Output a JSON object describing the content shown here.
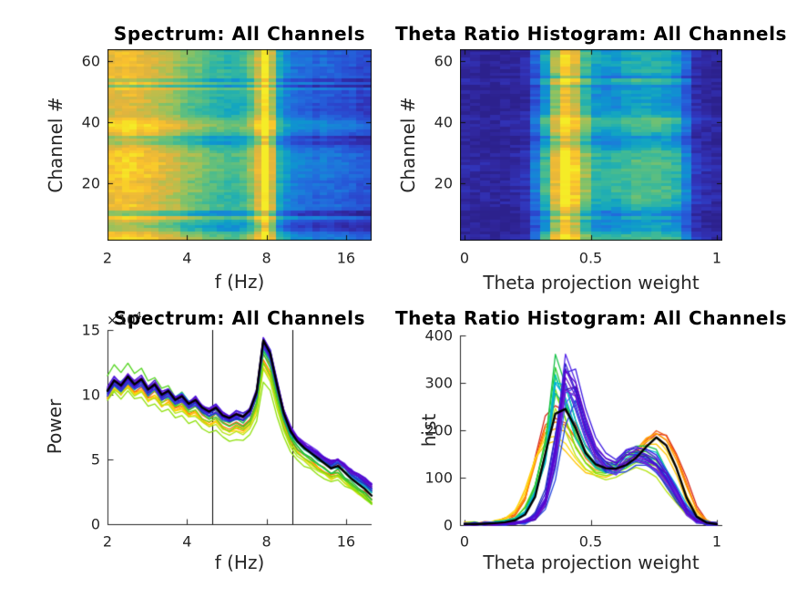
{
  "figure": {
    "background": "#ffffff",
    "axis_color": "#262626",
    "title_color": "#000000"
  },
  "chart_data": [
    {
      "type": "heatmap",
      "title": "Spectrum: All Channels",
      "xlabel": "f (Hz)",
      "ylabel": "Channel #",
      "x_scale": "log",
      "xlim": [
        2,
        20
      ],
      "n_channels": 64,
      "x_tick_labels": [
        "2",
        "4",
        "8",
        "16"
      ],
      "x_tick_values": [
        2,
        4,
        8,
        16
      ],
      "y_tick_labels": [
        "20",
        "40",
        "60"
      ],
      "y_tick_values": [
        20,
        40,
        60
      ],
      "colormap": "parula",
      "colormap_stops": [
        [
          0,
          "#2a1f85"
        ],
        [
          0.06,
          "#30269c"
        ],
        [
          0.12,
          "#3133b8"
        ],
        [
          0.18,
          "#2c44cb"
        ],
        [
          0.24,
          "#2658d7"
        ],
        [
          0.3,
          "#226cdc"
        ],
        [
          0.36,
          "#1a80d9"
        ],
        [
          0.42,
          "#0f93d0"
        ],
        [
          0.48,
          "#12a5c2"
        ],
        [
          0.54,
          "#28b2ab"
        ],
        [
          0.6,
          "#45bb91"
        ],
        [
          0.66,
          "#6ac077"
        ],
        [
          0.72,
          "#93c25f"
        ],
        [
          0.78,
          "#bcbd4c"
        ],
        [
          0.84,
          "#e0b43e"
        ],
        [
          0.9,
          "#f9c02f"
        ],
        [
          0.95,
          "#f8d726"
        ],
        [
          1,
          "#f5ec27"
        ]
      ],
      "freq_bins": [
        2.0,
        2.14,
        2.28,
        2.44,
        2.6,
        2.78,
        2.97,
        3.17,
        3.39,
        3.62,
        3.87,
        4.13,
        4.41,
        4.71,
        5.03,
        5.37,
        5.74,
        6.13,
        6.55,
        6.99,
        7.46,
        7.96,
        8.51,
        9.08,
        9.7,
        10.36,
        11.07,
        11.82,
        12.63,
        13.49,
        14.41,
        15.39,
        16.44,
        17.56,
        18.75,
        20.0
      ],
      "col_intensity": [
        0.87,
        0.88,
        0.86,
        0.87,
        0.85,
        0.84,
        0.82,
        0.79,
        0.76,
        0.73,
        0.7,
        0.67,
        0.64,
        0.61,
        0.59,
        0.57,
        0.555,
        0.55,
        0.58,
        0.64,
        0.82,
        0.99,
        0.8,
        0.5,
        0.4,
        0.33,
        0.3,
        0.285,
        0.28,
        0.27,
        0.26,
        0.25,
        0.23,
        0.21,
        0.19,
        0.17
      ],
      "row_offsets": [
        0.1,
        0.06,
        0.02,
        -0.1,
        -0.14,
        -0.12,
        -0.06,
        0.08,
        -0.18,
        -0.16,
        0.02,
        0.04,
        0.0,
        0.02,
        0.0,
        0.02,
        0.05,
        0.03,
        0.04,
        0.02,
        0.05,
        0.07,
        0.05,
        0.08,
        0.06,
        0.09,
        0.07,
        0.05,
        0.08,
        0.04,
        0.02,
        -0.02,
        -0.12,
        -0.08,
        -0.14,
        0.02,
        0.06,
        0.1,
        0.12,
        0.09,
        0.03,
        -0.02,
        -0.04,
        -0.06,
        -0.03,
        -0.05,
        -0.02,
        -0.04,
        -0.01,
        -0.03,
        0.06,
        -0.16,
        0.04,
        -0.12,
        0.02,
        -0.01,
        0.01,
        -0.02,
        0.03,
        -0.01,
        0.02,
        0.0,
        0.01,
        0.0
      ],
      "noise": 0.04
    },
    {
      "type": "heatmap",
      "title": "Theta Ratio Histogram: All Channels",
      "xlabel": "Theta projection weight",
      "ylabel": "Channel #",
      "x_scale": "linear",
      "xlim": [
        0,
        1
      ],
      "n_channels": 64,
      "x_tick_labels": [
        "0",
        "0.5",
        "1"
      ],
      "x_tick_values": [
        0,
        0.5,
        1
      ],
      "y_tick_labels": [
        "20",
        "40",
        "60"
      ],
      "y_tick_values": [
        20,
        40,
        60
      ],
      "colormap": "parula",
      "x_bins": [
        0,
        0.04,
        0.08,
        0.12,
        0.16,
        0.2,
        0.24,
        0.28,
        0.32,
        0.36,
        0.4,
        0.44,
        0.48,
        0.52,
        0.56,
        0.6,
        0.64,
        0.68,
        0.72,
        0.76,
        0.8,
        0.84,
        0.88,
        0.92,
        0.96,
        1.0
      ],
      "col_intensity": [
        0.05,
        0.05,
        0.05,
        0.05,
        0.06,
        0.07,
        0.1,
        0.26,
        0.46,
        0.72,
        0.9,
        0.8,
        0.6,
        0.46,
        0.42,
        0.44,
        0.47,
        0.5,
        0.52,
        0.5,
        0.48,
        0.42,
        0.28,
        0.12,
        0.06,
        0.05
      ],
      "row_offsets": [
        0.14,
        0.1,
        0.04,
        -0.02,
        -0.04,
        -0.02,
        -0.06,
        0.02,
        -0.1,
        -0.08,
        0.02,
        0.06,
        0.1,
        0.08,
        0.12,
        0.1,
        0.14,
        0.12,
        0.1,
        0.13,
        0.11,
        0.14,
        0.12,
        0.15,
        0.13,
        0.14,
        0.12,
        0.1,
        0.12,
        0.08,
        0.04,
        0.0,
        -0.06,
        -0.02,
        -0.08,
        0.02,
        0.06,
        0.08,
        0.1,
        0.12,
        0.14,
        0.04,
        0.0,
        -0.02,
        -0.04,
        -0.02,
        -0.05,
        -0.03,
        -0.05,
        -0.02,
        -0.06,
        -0.1,
        0.06,
        0.1,
        -0.12,
        -0.02,
        0.02,
        0.0,
        0.03,
        0.05,
        0.02,
        0.04,
        0.02,
        0.0
      ],
      "noise": 0.05
    },
    {
      "type": "line",
      "title": "Spectrum: All Channels",
      "xlabel": "f (Hz)",
      "ylabel": "Power",
      "y_exponent": {
        "prefix": "×10",
        "exp": "4"
      },
      "x_scale": "log",
      "xlim": [
        2,
        20
      ],
      "ylim": [
        0,
        15
      ],
      "x_tick_labels": [
        "2",
        "4",
        "8",
        "16"
      ],
      "x_tick_values": [
        2,
        4,
        8,
        16
      ],
      "y_tick_labels": [
        "0",
        "5",
        "10",
        "15"
      ],
      "y_tick_values": [
        0,
        5,
        10,
        15
      ],
      "ref_lines_hz": [
        5,
        10
      ],
      "x": [
        2.0,
        2.12,
        2.25,
        2.39,
        2.53,
        2.69,
        2.85,
        3.02,
        3.21,
        3.4,
        3.61,
        3.83,
        4.06,
        4.31,
        4.57,
        4.85,
        5.15,
        5.46,
        5.79,
        6.15,
        6.52,
        6.92,
        7.34,
        7.78,
        8.26,
        8.76,
        9.29,
        9.86,
        10.46,
        11.1,
        11.77,
        12.49,
        13.25,
        14.05,
        14.91,
        15.82,
        16.78,
        17.8,
        18.89,
        20.0
      ],
      "mean_y": [
        10.3,
        11.1,
        10.7,
        11.4,
        10.8,
        11.2,
        10.4,
        10.8,
        10.0,
        10.3,
        9.6,
        9.9,
        9.3,
        9.6,
        9.0,
        8.7,
        9.0,
        8.4,
        8.2,
        8.5,
        8.3,
        8.8,
        10.2,
        14.2,
        13.2,
        10.8,
        8.6,
        7.2,
        6.4,
        5.9,
        5.5,
        5.1,
        4.7,
        4.3,
        4.5,
        4.0,
        3.5,
        3.1,
        2.7,
        2.2
      ],
      "mean_color": "#000000",
      "series": [
        [
          "#5b00c8",
          1.0,
          0,
          0.8
        ],
        [
          "#4a0dd8",
          1.02,
          0,
          0.7
        ],
        [
          "#3a16e0",
          0.99,
          0,
          0.85
        ],
        [
          "#6a11c4",
          1.01,
          0,
          0.6
        ],
        [
          "#2e1ecc",
          0.98,
          0,
          0.75
        ],
        [
          "#7a1fd0",
          1.01,
          0,
          0.65
        ],
        [
          "#5527e8",
          0.97,
          0,
          0.9
        ],
        [
          "#440aaa",
          1.0,
          0,
          0.55
        ],
        [
          "#6633ee",
          1.02,
          0,
          0.7
        ],
        [
          "#2244dd",
          0.99,
          0,
          0.6
        ],
        [
          "#1f35b8",
          0.97,
          0,
          0.5
        ],
        [
          "#2a5cf0",
          1.0,
          0,
          0.45
        ],
        [
          "#1b49d6",
          0.96,
          0,
          0.65
        ],
        [
          "#3a6af2",
          1.0,
          0,
          0.4
        ],
        [
          "#00a8e0",
          1.01,
          0,
          0.35,
          0.22
        ],
        [
          "#00bcd4",
          0.98,
          0,
          0.3,
          0.25
        ],
        [
          "#00c9b8",
          1.0,
          0,
          0.3
        ],
        [
          "#10b79a",
          0.96,
          0,
          0.25
        ],
        [
          "#18c24a",
          0.95,
          0.6,
          -0.15
        ],
        [
          "#2ecc30",
          0.92,
          0.9,
          -0.2
        ],
        [
          "#52d41e",
          0.95,
          1.8,
          -0.4
        ],
        [
          "#79dd12",
          0.88,
          1.2,
          -0.3
        ],
        [
          "#8ee00a",
          0.78,
          1.6,
          -0.1
        ],
        [
          "#b5e414",
          0.84,
          1.2,
          -0.25
        ],
        [
          "#ffd90f",
          0.86,
          0.9,
          -0.3
        ],
        [
          "#ffc400",
          0.88,
          0.7,
          -0.25
        ],
        [
          "#ff9f00",
          0.87,
          0.8,
          -0.2
        ],
        [
          "#ff7a00",
          0.9,
          0.5,
          -0.15
        ],
        [
          "#f05510",
          0.93,
          0.3,
          -0.1
        ],
        [
          "#d8281c",
          0.99,
          0.1,
          0.3
        ]
      ]
    },
    {
      "type": "line",
      "title": "Theta Ratio Histogram: All Channels",
      "xlabel": "Theta projection weight",
      "ylabel": "hist",
      "x_scale": "linear",
      "xlim": [
        0,
        1
      ],
      "ylim": [
        0,
        400
      ],
      "x_tick_labels": [
        "0",
        "0.5",
        "1"
      ],
      "x_tick_values": [
        0,
        0.5,
        1
      ],
      "y_tick_labels": [
        "0",
        "100",
        "200",
        "300",
        "400"
      ],
      "y_tick_values": [
        0,
        100,
        200,
        300,
        400
      ],
      "x": [
        0,
        0.04,
        0.08,
        0.12,
        0.16,
        0.2,
        0.24,
        0.28,
        0.32,
        0.36,
        0.4,
        0.44,
        0.48,
        0.52,
        0.56,
        0.6,
        0.64,
        0.68,
        0.72,
        0.76,
        0.8,
        0.84,
        0.88,
        0.92,
        0.96,
        1.0
      ],
      "mean_y": [
        2,
        2,
        3,
        4,
        6,
        10,
        22,
        60,
        150,
        235,
        245,
        205,
        152,
        128,
        120,
        119,
        126,
        142,
        165,
        185,
        168,
        120,
        58,
        18,
        5,
        2
      ],
      "mean_color": "#000000",
      "group_curves": {
        "cool": [
          1,
          1,
          2,
          2,
          3,
          5,
          8,
          18,
          55,
          170,
          350,
          298,
          215,
          160,
          135,
          126,
          152,
          158,
          150,
          135,
          105,
          65,
          28,
          9,
          3,
          1
        ],
        "green": [
          2,
          2,
          3,
          4,
          6,
          12,
          28,
          75,
          150,
          330,
          268,
          198,
          152,
          130,
          120,
          125,
          140,
          152,
          150,
          143,
          108,
          68,
          30,
          10,
          3,
          1
        ],
        "warm": [
          3,
          3,
          4,
          6,
          10,
          20,
          50,
          120,
          185,
          196,
          190,
          164,
          132,
          116,
          112,
          118,
          132,
          155,
          180,
          196,
          184,
          148,
          88,
          34,
          8,
          2
        ]
      },
      "series": [
        [
          "#5b00c8",
          "cool",
          1.0,
          0.005
        ],
        [
          "#4a0dd8",
          "cool",
          0.95,
          0
        ],
        [
          "#3a16e0",
          "cool",
          1.05,
          0.01
        ],
        [
          "#6a11c4",
          "cool",
          0.9,
          0
        ],
        [
          "#2e1ecc",
          "cool",
          0.98,
          -0.005
        ],
        [
          "#7a1fd0",
          "cool",
          0.88,
          0.005
        ],
        [
          "#5527e8",
          "cool",
          1.02,
          0
        ],
        [
          "#440aaa",
          "cool",
          0.93,
          0.01
        ],
        [
          "#6633ee",
          "cool",
          0.85,
          0
        ],
        [
          "#2244dd",
          "cool",
          0.82,
          0.02
        ],
        [
          "#1f35b8",
          "cool",
          0.88,
          -0.01
        ],
        [
          "#2a5cf0",
          "cool",
          0.92,
          0.01
        ],
        [
          "#1b49d6",
          "cool",
          0.85,
          0
        ],
        [
          "#3a6af2",
          "cool",
          0.9,
          0.015
        ],
        [
          "#00a8e0",
          "green",
          0.98,
          0.005
        ],
        [
          "#00bcd4",
          "green",
          1.04,
          0.01
        ],
        [
          "#00c9b8",
          "green",
          0.95,
          0
        ],
        [
          "#10b79a",
          "green",
          0.9,
          0.005
        ],
        [
          "#18c24a",
          "green",
          1.1,
          0
        ],
        [
          "#2ecc30",
          "green",
          1.02,
          -0.005
        ],
        [
          "#52d41e",
          "green",
          0.96,
          0
        ],
        [
          "#79dd12",
          "green",
          0.9,
          -0.01
        ],
        [
          "#8ee00a",
          "green",
          0.86,
          -0.005
        ],
        [
          "#b5e414",
          "green",
          0.8,
          -0.015
        ],
        [
          "#ffd90f",
          "warm",
          0.95,
          -0.015
        ],
        [
          "#ffc400",
          "warm",
          0.9,
          -0.02
        ],
        [
          "#ff9f00",
          "warm",
          1.05,
          -0.005,
          1.0
        ],
        [
          "#ff7a00",
          "warm",
          1.1,
          0,
          0.98
        ],
        [
          "#f05510",
          "warm",
          1.15,
          0,
          1.0
        ],
        [
          "#d8281c",
          "warm",
          1.28,
          0.005,
          1.0
        ]
      ]
    }
  ]
}
